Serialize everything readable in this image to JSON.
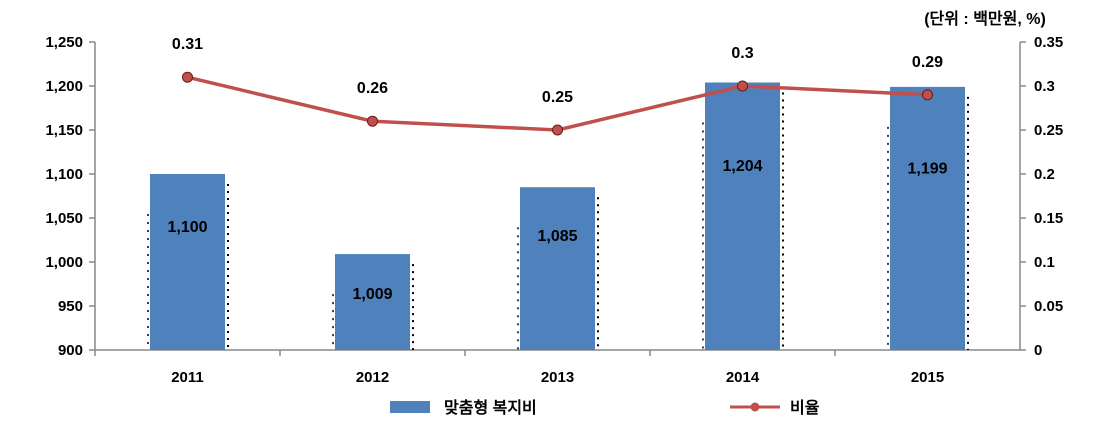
{
  "chart_data": {
    "type": "bar",
    "unit_note": "(단위 : 백만원, %)",
    "categories": [
      "2011",
      "2012",
      "2013",
      "2014",
      "2015"
    ],
    "series": [
      {
        "name": "맞춤형 복지비",
        "type": "bar",
        "axis": "left",
        "values": [
          1100,
          1009,
          1085,
          1204,
          1199
        ],
        "labels": [
          "1,100",
          "1,009",
          "1,085",
          "1,204",
          "1,199"
        ]
      },
      {
        "name": "비율",
        "type": "line",
        "axis": "right",
        "values": [
          0.31,
          0.26,
          0.25,
          0.3,
          0.29
        ],
        "labels": [
          "0.31",
          "0.26",
          "0.25",
          "0.3",
          "0.29"
        ]
      }
    ],
    "y_left": {
      "min": 900,
      "max": 1250,
      "ticks": [
        "900",
        "950",
        "1,000",
        "1,050",
        "1,100",
        "1,150",
        "1,200",
        "1,250"
      ]
    },
    "y_right": {
      "min": 0,
      "max": 0.35,
      "ticks": [
        "0",
        "0.05",
        "0.1",
        "0.15",
        "0.2",
        "0.25",
        "0.3",
        "0.35"
      ]
    },
    "grid": false,
    "legend_position": "bottom",
    "colors": {
      "bar": "#4f81bd",
      "line": "#c0504d",
      "marker": "#c0504d"
    }
  }
}
